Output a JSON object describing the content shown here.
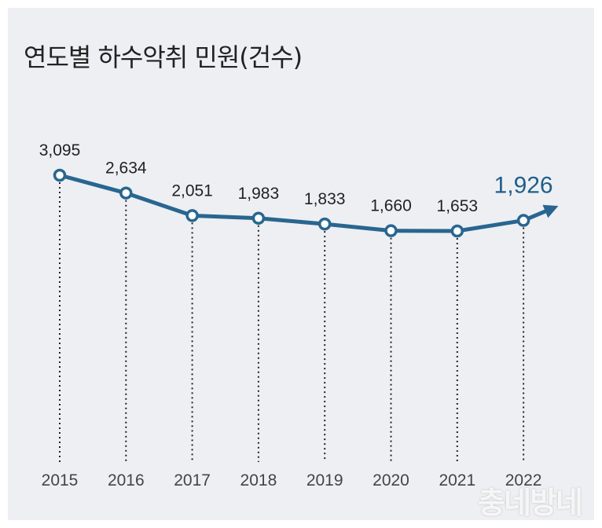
{
  "chart_data": {
    "type": "line",
    "title": "연도별 하수악취 민원(건수)",
    "x": [
      "2015",
      "2016",
      "2017",
      "2018",
      "2019",
      "2020",
      "2021",
      "2022"
    ],
    "series": [
      {
        "values": [
          3095,
          2634,
          2051,
          1983,
          1833,
          1660,
          1653,
          1926
        ]
      }
    ],
    "data_labels": [
      "3,095",
      "2,634",
      "2,051",
      "1,983",
      "1,833",
      "1,660",
      "1,653",
      "1,926"
    ],
    "highlight_index": 7,
    "colors": {
      "line": "#286690",
      "highlight": "#1f5f8b"
    },
    "grid": false
  },
  "watermark": "충네방네"
}
